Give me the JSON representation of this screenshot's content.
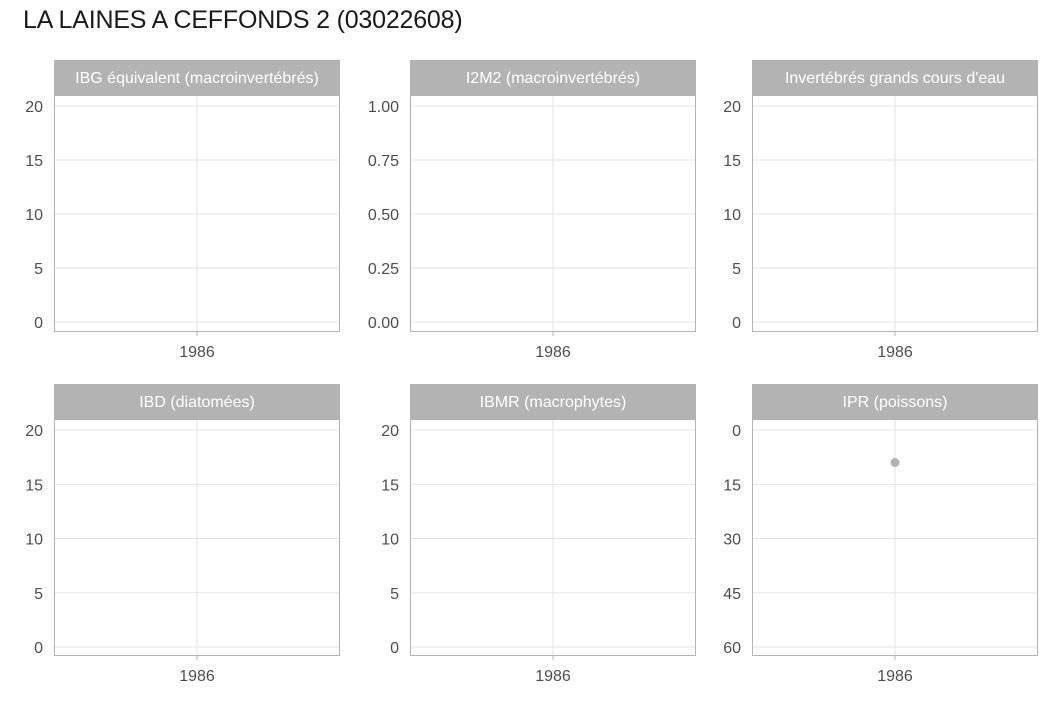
{
  "title": "LA LAINES A CEFFONDS 2 (03022608)",
  "colors": {
    "strip_background": "#b3b3b3",
    "strip_text": "#ffffff",
    "panel_border": "#b3b3b3",
    "gridline": "#e3e3e3",
    "tick_text": "#4d4d4d",
    "point": "#b3b3b3"
  },
  "chart_data": [
    {
      "type": "scatter",
      "title": "IBG équivalent (macroinvertébrés)",
      "x_ticks": [
        "1986"
      ],
      "y_ticks": [
        "20",
        "15",
        "10",
        "5",
        "0"
      ],
      "ylim": [
        0,
        20
      ],
      "y_reversed": false,
      "grid": true,
      "points": []
    },
    {
      "type": "scatter",
      "title": "I2M2 (macroinvertébrés)",
      "x_ticks": [
        "1986"
      ],
      "y_ticks": [
        "1.00",
        "0.75",
        "0.50",
        "0.25",
        "0.00"
      ],
      "ylim": [
        0,
        1
      ],
      "y_reversed": false,
      "grid": true,
      "points": []
    },
    {
      "type": "scatter",
      "title": "Invertébrés grands cours d'eau",
      "x_ticks": [
        "1986"
      ],
      "y_ticks": [
        "20",
        "15",
        "10",
        "5",
        "0"
      ],
      "ylim": [
        0,
        20
      ],
      "y_reversed": false,
      "grid": true,
      "points": []
    },
    {
      "type": "scatter",
      "title": "IBD (diatomées)",
      "x_ticks": [
        "1986"
      ],
      "y_ticks": [
        "20",
        "15",
        "10",
        "5",
        "0"
      ],
      "ylim": [
        0,
        20
      ],
      "y_reversed": false,
      "grid": true,
      "points": []
    },
    {
      "type": "scatter",
      "title": "IBMR (macrophytes)",
      "x_ticks": [
        "1986"
      ],
      "y_ticks": [
        "20",
        "15",
        "10",
        "5",
        "0"
      ],
      "ylim": [
        0,
        20
      ],
      "y_reversed": false,
      "grid": true,
      "points": []
    },
    {
      "type": "scatter",
      "title": "IPR (poissons)",
      "x_ticks": [
        "1986"
      ],
      "y_ticks": [
        "0",
        "15",
        "30",
        "45",
        "60"
      ],
      "ylim": [
        0,
        60
      ],
      "y_reversed": true,
      "grid": true,
      "points": [
        {
          "x": "1986",
          "y": 9
        }
      ]
    }
  ]
}
